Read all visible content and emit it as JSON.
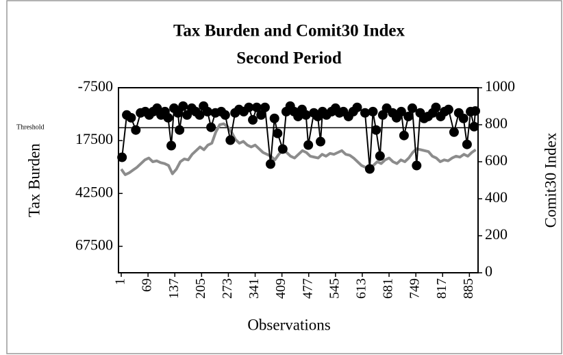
{
  "chart_data": {
    "type": "line",
    "title": "Tax Burden and Comit30 Index",
    "subtitle": "Second Period",
    "x_label": "Observations",
    "y_label": "Tax Burden",
    "y2_label": "Comit30 Index",
    "xlim": [
      -6,
      907
    ],
    "xticks": [
      1,
      69,
      137,
      205,
      273,
      341,
      409,
      477,
      545,
      613,
      681,
      749,
      817,
      885
    ],
    "ylim": [
      -7500,
      80000
    ],
    "y_inverted": true,
    "yticks": [
      -7500,
      17500,
      42500,
      67500
    ],
    "y2lim": [
      0,
      1000
    ],
    "y2ticks": [
      0,
      200,
      400,
      600,
      800,
      1000
    ],
    "threshold": {
      "label": "Threshold",
      "value": 11400
    },
    "series": [
      {
        "color": "#000000",
        "axis": "y",
        "marker": true,
        "x": [
          3,
          15,
          26,
          38,
          50,
          62,
          72,
          82,
          92,
          102,
          112,
          120,
          128,
          135,
          145,
          149,
          158,
          168,
          180,
          190,
          200,
          210,
          220,
          229,
          240,
          255,
          265,
          278,
          290,
          300,
          312,
          325,
          335,
          345,
          356,
          366,
          380,
          390,
          398,
          411,
          420,
          430,
          440,
          450,
          460,
          470,
          476,
          490,
          500,
          507,
          512,
          522,
          535,
          545,
          555,
          565,
          578,
          590,
          600,
          620,
          632,
          640,
          648,
          658,
          665,
          675,
          690,
          700,
          712,
          719,
          730,
          740,
          751,
          760,
          770,
          780,
          792,
          800,
          812,
          822,
          832,
          846,
          858,
          870,
          879,
          888,
          897,
          900
        ],
        "values": [
          25400,
          5400,
          6700,
          12500,
          4400,
          3800,
          5400,
          3800,
          2200,
          5400,
          3800,
          6700,
          19900,
          2200,
          4400,
          12500,
          1200,
          5400,
          2200,
          3800,
          5400,
          1200,
          3800,
          11200,
          4400,
          3800,
          5400,
          17300,
          4400,
          2800,
          3800,
          1800,
          7700,
          1800,
          5400,
          1800,
          28600,
          7000,
          14100,
          21500,
          3800,
          1200,
          3800,
          6100,
          2800,
          5400,
          19600,
          4400,
          6100,
          18000,
          3800,
          5400,
          3800,
          2200,
          4400,
          3800,
          6100,
          3800,
          1800,
          4400,
          30900,
          3800,
          12500,
          24800,
          5400,
          2200,
          4400,
          6700,
          3800,
          15100,
          6100,
          2200,
          29300,
          4400,
          7000,
          6100,
          4400,
          1800,
          6100,
          3800,
          2800,
          13500,
          4400,
          7000,
          19300,
          3800,
          10900,
          3500
        ]
      },
      {
        "color": "#8c8c8c",
        "axis": "y2",
        "marker": false,
        "x": [
          1,
          11,
          21,
          31,
          41,
          51,
          61,
          71,
          81,
          91,
          101,
          111,
          121,
          131,
          141,
          151,
          161,
          171,
          181,
          191,
          201,
          211,
          221,
          231,
          241,
          251,
          261,
          271,
          281,
          291,
          301,
          311,
          321,
          331,
          341,
          351,
          361,
          371,
          381,
          391,
          401,
          411,
          421,
          431,
          441,
          451,
          461,
          471,
          481,
          491,
          501,
          511,
          521,
          531,
          541,
          551,
          561,
          571,
          581,
          591,
          601,
          611,
          621,
          631,
          641,
          651,
          661,
          671,
          681,
          691,
          701,
          711,
          721,
          731,
          741,
          751,
          761,
          771,
          781,
          791,
          801,
          811,
          821,
          831,
          841,
          851,
          861,
          871,
          881,
          891,
          901
        ],
        "values": [
          560,
          530,
          540,
          555,
          570,
          590,
          610,
          620,
          600,
          605,
          595,
          590,
          580,
          535,
          560,
          600,
          615,
          610,
          640,
          660,
          680,
          665,
          690,
          700,
          760,
          800,
          805,
          790,
          760,
          720,
          700,
          710,
          690,
          680,
          690,
          670,
          650,
          640,
          630,
          610,
          640,
          660,
          650,
          630,
          620,
          640,
          660,
          650,
          630,
          625,
          620,
          640,
          630,
          645,
          640,
          650,
          660,
          640,
          635,
          620,
          600,
          580,
          570,
          565,
          580,
          600,
          590,
          610,
          620,
          600,
          590,
          610,
          600,
          620,
          650,
          670,
          665,
          660,
          655,
          630,
          620,
          600,
          610,
          605,
          620,
          630,
          625,
          640,
          630,
          650,
          665
        ]
      }
    ]
  }
}
